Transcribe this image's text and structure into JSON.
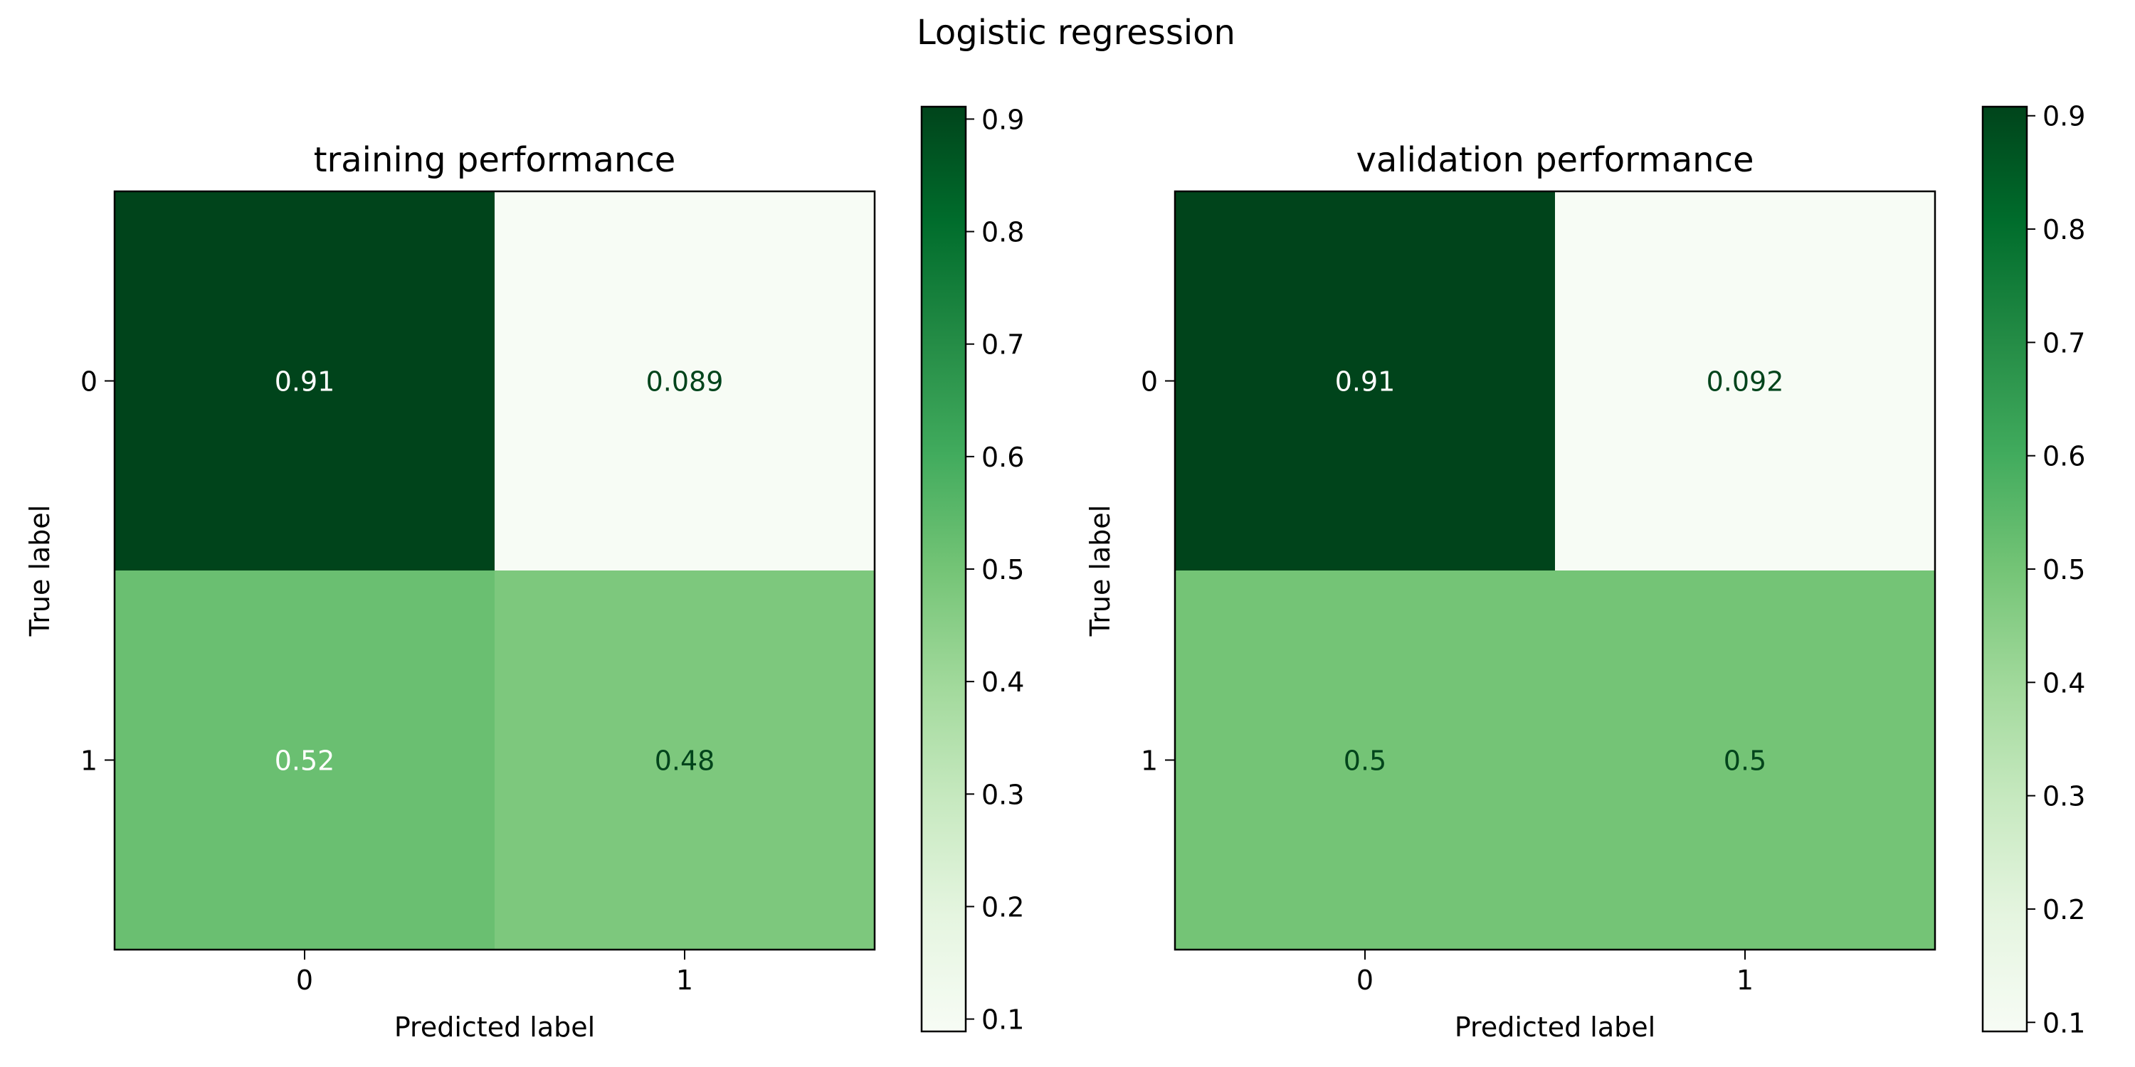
{
  "figure": {
    "title": "Logistic regression"
  },
  "chart_data": [
    {
      "type": "heatmap",
      "title": "training performance",
      "xlabel": "Predicted label",
      "ylabel": "True label",
      "x_categories": [
        "0",
        "1"
      ],
      "y_categories": [
        "0",
        "1"
      ],
      "values": [
        [
          0.91,
          0.089
        ],
        [
          0.52,
          0.48
        ]
      ],
      "value_labels": [
        [
          "0.91",
          "0.089"
        ],
        [
          "0.52",
          "0.48"
        ]
      ],
      "colormap": "Greens",
      "colorbar": {
        "min": 0.089,
        "max": 0.911,
        "ticks": [
          "0.1",
          "0.2",
          "0.3",
          "0.4",
          "0.5",
          "0.6",
          "0.7",
          "0.8",
          "0.9"
        ]
      },
      "grid": false
    },
    {
      "type": "heatmap",
      "title": "validation performance",
      "xlabel": "Predicted label",
      "ylabel": "True label",
      "x_categories": [
        "0",
        "1"
      ],
      "y_categories": [
        "0",
        "1"
      ],
      "values": [
        [
          0.91,
          0.092
        ],
        [
          0.5,
          0.5
        ]
      ],
      "value_labels": [
        [
          "0.91",
          "0.092"
        ],
        [
          "0.5",
          "0.5"
        ]
      ],
      "colormap": "Greens",
      "colorbar": {
        "min": 0.092,
        "max": 0.908,
        "ticks": [
          "0.1",
          "0.2",
          "0.3",
          "0.4",
          "0.5",
          "0.6",
          "0.7",
          "0.8",
          "0.9"
        ]
      },
      "grid": false
    }
  ],
  "colors": {
    "greens_stops": [
      "#f7fcf5",
      "#e5f5e0",
      "#c7e9c0",
      "#a1d99b",
      "#74c476",
      "#41ab5d",
      "#238b45",
      "#006d2c",
      "#00441b"
    ],
    "dark_text": "#00441b",
    "light_text": "#ffffff"
  }
}
